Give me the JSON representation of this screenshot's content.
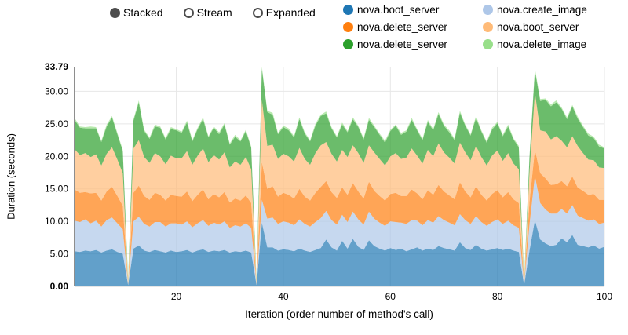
{
  "controls": {
    "items": [
      {
        "label": "Stacked",
        "selected": true
      },
      {
        "label": "Stream",
        "selected": false
      },
      {
        "label": "Expanded",
        "selected": false
      }
    ]
  },
  "legend": {
    "items": [
      {
        "label": "nova.boot_server",
        "color": "#1f77b4"
      },
      {
        "label": "nova.create_image",
        "color": "#aec7e8"
      },
      {
        "label": "nova.delete_server",
        "color": "#ff7f0e"
      },
      {
        "label": "nova.boot_server",
        "color": "#ffbb78"
      },
      {
        "label": "nova.delete_server",
        "color": "#2ca02c"
      },
      {
        "label": "nova.delete_image",
        "color": "#98df8a"
      }
    ]
  },
  "chart_data": {
    "type": "area",
    "stacked": true,
    "xlabel": "Iteration (order number of method's call)",
    "ylabel": "Duration (seconds)",
    "x_range": [
      1,
      100
    ],
    "ylim": [
      0,
      33.79
    ],
    "grid": true,
    "fill_opacity": 0.7,
    "xticks": [
      20,
      40,
      60,
      80,
      100
    ],
    "yticks": [
      {
        "value": 0,
        "label": "0.00",
        "bold": true
      },
      {
        "value": 5,
        "label": "5.00",
        "bold": false
      },
      {
        "value": 10,
        "label": "10.00",
        "bold": false
      },
      {
        "value": 15,
        "label": "15.00",
        "bold": false
      },
      {
        "value": 20,
        "label": "20.00",
        "bold": false
      },
      {
        "value": 25,
        "label": "25.00",
        "bold": false
      },
      {
        "value": 30,
        "label": "30.00",
        "bold": false
      },
      {
        "value": 33.79,
        "label": "33.79",
        "bold": true
      }
    ],
    "series": [
      {
        "name": "nova.boot_server",
        "color": "#1f77b4",
        "values": [
          5.4,
          5.3,
          5.5,
          5.4,
          5.6,
          5.2,
          5.5,
          5.7,
          5.3,
          5.0,
          0.2,
          5.8,
          6.3,
          5.5,
          5.3,
          5.6,
          5.4,
          5.2,
          5.5,
          5.3,
          5.4,
          5.6,
          5.2,
          5.5,
          5.7,
          5.3,
          5.5,
          5.4,
          5.6,
          5.2,
          5.4,
          5.3,
          5.5,
          5.2,
          0.2,
          9.8,
          6.0,
          6.0,
          5.5,
          5.7,
          5.6,
          5.4,
          5.8,
          5.5,
          5.3,
          5.6,
          5.9,
          7.2,
          6.0,
          5.5,
          7.0,
          5.8,
          7.3,
          6.1,
          5.6,
          7.1,
          6.2,
          5.8,
          5.5,
          5.9,
          5.6,
          5.8,
          5.4,
          5.7,
          6.0,
          5.5,
          5.8,
          5.6,
          6.2,
          5.9,
          5.7,
          5.5,
          6.8,
          5.9,
          5.6,
          6.4,
          5.8,
          5.5,
          5.7,
          5.9,
          5.6,
          5.8,
          5.5,
          5.3,
          0.2,
          5.5,
          10.2,
          7.2,
          6.6,
          6.2,
          6.4,
          7.4,
          6.8,
          7.9,
          6.4,
          6.2,
          6.0,
          6.3,
          5.8,
          6.1
        ]
      },
      {
        "name": "nova.create_image",
        "color": "#aec7e8",
        "values": [
          4.7,
          4.6,
          4.8,
          4.3,
          4.5,
          4.0,
          4.7,
          4.9,
          4.4,
          3.8,
          0.1,
          4.2,
          4.4,
          4.1,
          3.9,
          4.3,
          4.5,
          4.0,
          4.2,
          4.4,
          4.1,
          4.4,
          3.9,
          4.2,
          4.5,
          4.0,
          4.3,
          4.1,
          4.4,
          3.8,
          4.0,
          3.9,
          4.2,
          3.8,
          0.1,
          3.5,
          4.4,
          4.6,
          4.1,
          4.3,
          4.2,
          4.0,
          4.5,
          4.1,
          3.9,
          4.3,
          4.6,
          4.4,
          4.2,
          4.0,
          4.0,
          4.1,
          4.2,
          4.2,
          3.9,
          4.4,
          4.2,
          4.0,
          3.8,
          4.1,
          4.3,
          4.0,
          4.2,
          4.5,
          4.1,
          3.9,
          4.4,
          4.2,
          4.6,
          4.3,
          4.1,
          3.9,
          4.3,
          4.3,
          4.0,
          4.4,
          4.1,
          3.8,
          4.2,
          4.4,
          4.0,
          4.3,
          3.9,
          3.7,
          0.1,
          4.0,
          6.8,
          5.6,
          5.2,
          5.0,
          4.8,
          4.5,
          4.4,
          4.6,
          4.5,
          4.3,
          4.1,
          4.0,
          3.8,
          3.7
        ]
      },
      {
        "name": "nova.delete_server",
        "color": "#ff7f0e",
        "values": [
          4.8,
          4.5,
          4.2,
          4.6,
          4.3,
          4.0,
          4.4,
          4.7,
          4.2,
          3.6,
          0.1,
          4.4,
          4.8,
          4.3,
          4.1,
          4.5,
          4.2,
          4.0,
          4.4,
          4.2,
          4.3,
          4.6,
          4.0,
          4.4,
          4.7,
          4.1,
          4.4,
          4.2,
          4.5,
          3.9,
          4.1,
          4.0,
          4.3,
          3.8,
          0.1,
          5.8,
          4.6,
          4.8,
          4.2,
          4.4,
          4.3,
          4.1,
          4.7,
          4.2,
          4.0,
          4.5,
          4.8,
          4.6,
          4.3,
          4.1,
          4.2,
          4.2,
          4.4,
          4.3,
          4.0,
          4.6,
          4.3,
          4.1,
          3.9,
          4.2,
          4.5,
          4.1,
          4.3,
          4.7,
          4.2,
          4.0,
          4.6,
          4.3,
          4.8,
          4.4,
          4.2,
          4.0,
          4.9,
          4.4,
          4.1,
          4.6,
          4.2,
          3.9,
          4.3,
          4.5,
          4.1,
          4.4,
          4.0,
          3.8,
          0.1,
          3.5,
          4.0,
          4.6,
          4.8,
          4.4,
          4.5,
          4.3,
          4.2,
          4.4,
          4.3,
          4.2,
          4.0,
          3.9,
          3.7,
          3.5
        ]
      },
      {
        "name": "nova.boot_server",
        "color": "#ffbb78",
        "values": [
          6.2,
          5.8,
          6.0,
          5.6,
          5.9,
          5.4,
          5.8,
          6.1,
          5.6,
          5.0,
          0.2,
          6.8,
          7.0,
          6.0,
          5.7,
          6.1,
          5.9,
          5.6,
          6.0,
          5.8,
          5.9,
          6.2,
          5.6,
          6.0,
          6.3,
          5.7,
          6.0,
          5.8,
          6.1,
          5.4,
          5.7,
          5.5,
          5.9,
          5.2,
          0.2,
          9.6,
          6.6,
          6.4,
          5.8,
          6.0,
          5.9,
          5.7,
          6.3,
          5.8,
          5.5,
          6.1,
          6.4,
          6.0,
          5.9,
          5.6,
          5.8,
          5.8,
          5.8,
          5.9,
          5.5,
          5.6,
          5.9,
          5.7,
          5.4,
          5.8,
          6.1,
          5.7,
          5.9,
          6.3,
          5.8,
          5.5,
          6.2,
          5.9,
          6.4,
          6.0,
          5.8,
          5.5,
          6.1,
          6.0,
          5.7,
          6.2,
          5.8,
          5.4,
          5.9,
          6.1,
          5.6,
          6.0,
          5.5,
          5.2,
          0.2,
          4.5,
          8.8,
          6.6,
          7.2,
          7.0,
          7.4,
          6.2,
          6.0,
          6.2,
          6.4,
          5.8,
          5.4,
          5.2,
          5.0,
          4.9
        ]
      },
      {
        "name": "nova.delete_server",
        "color": "#2ca02c",
        "values": [
          4.5,
          4.2,
          3.8,
          4.4,
          4.0,
          3.6,
          4.2,
          4.6,
          3.9,
          3.4,
          0.1,
          4.3,
          5.8,
          4.0,
          3.7,
          4.1,
          4.4,
          3.8,
          4.1,
          4.3,
          3.9,
          4.4,
          3.6,
          4.1,
          4.5,
          3.8,
          4.2,
          3.9,
          4.3,
          3.5,
          3.8,
          3.6,
          4.0,
          3.3,
          0.1,
          4.8,
          5.2,
          4.6,
          3.8,
          4.1,
          4.0,
          3.7,
          4.4,
          3.9,
          3.6,
          4.2,
          4.5,
          4.4,
          3.9,
          3.7,
          3.9,
          3.8,
          4.0,
          4.0,
          3.6,
          3.9,
          3.9,
          3.7,
          3.5,
          3.9,
          4.2,
          3.7,
          4.0,
          4.4,
          3.9,
          3.6,
          4.3,
          4.0,
          4.5,
          4.1,
          3.9,
          3.6,
          4.6,
          4.1,
          3.8,
          4.3,
          3.9,
          3.5,
          4.0,
          4.2,
          3.8,
          4.1,
          3.7,
          3.4,
          0.1,
          2.3,
          3.4,
          4.5,
          4.9,
          5.1,
          5.2,
          4.9,
          4.3,
          4.6,
          4.2,
          4.0,
          3.7,
          3.4,
          3.2,
          3.0
        ]
      },
      {
        "name": "nova.delete_image",
        "color": "#98df8a",
        "values": [
          0.3,
          0.2,
          0.2,
          0.3,
          0.2,
          0.2,
          0.3,
          0.2,
          0.2,
          0.2,
          0.5,
          0.2,
          0.3,
          0.2,
          0.2,
          0.3,
          0.2,
          0.2,
          0.3,
          0.2,
          0.2,
          0.3,
          0.2,
          0.2,
          0.3,
          0.2,
          0.2,
          0.3,
          0.2,
          0.2,
          0.3,
          0.2,
          0.2,
          0.2,
          0.5,
          0.3,
          0.2,
          0.3,
          0.2,
          0.2,
          0.3,
          0.2,
          0.3,
          0.2,
          0.2,
          0.3,
          0.2,
          0.3,
          0.2,
          0.2,
          0.3,
          0.2,
          0.3,
          0.2,
          0.2,
          0.3,
          0.2,
          0.2,
          0.3,
          0.2,
          0.2,
          0.3,
          0.2,
          0.3,
          0.2,
          0.2,
          0.3,
          0.2,
          0.3,
          0.2,
          0.3,
          0.2,
          0.3,
          0.2,
          0.2,
          0.3,
          0.2,
          0.2,
          0.3,
          0.2,
          0.2,
          0.3,
          0.2,
          0.2,
          0.5,
          0.2,
          0.3,
          0.3,
          0.2,
          0.3,
          0.3,
          0.2,
          0.3,
          0.2,
          0.3,
          0.2,
          0.3,
          0.2,
          0.3,
          0.2
        ]
      }
    ]
  }
}
